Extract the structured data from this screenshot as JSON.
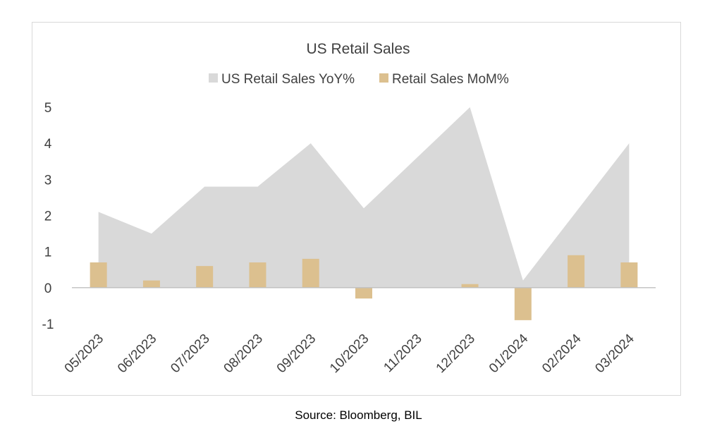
{
  "source_note": "Source: Bloomberg, BIL",
  "colors": {
    "area": "#d9d9d9",
    "bar": "#dcc08f",
    "axis": "#bfbfbf",
    "text": "#404040"
  },
  "chart_data": {
    "type": "bar",
    "title": "US Retail Sales",
    "categories": [
      "05/2023",
      "06/2023",
      "07/2023",
      "08/2023",
      "09/2023",
      "10/2023",
      "11/2023",
      "12/2023",
      "01/2024",
      "02/2024",
      "03/2024"
    ],
    "series": [
      {
        "name": "US Retail Sales YoY%",
        "type": "area",
        "values": [
          2.1,
          1.5,
          2.8,
          2.8,
          4.0,
          2.2,
          3.6,
          5.0,
          0.2,
          2.1,
          4.0
        ]
      },
      {
        "name": "Retail Sales MoM%",
        "type": "bar",
        "values": [
          0.7,
          0.2,
          0.6,
          0.7,
          0.8,
          -0.3,
          0.0,
          0.1,
          -0.9,
          0.9,
          0.7
        ]
      }
    ],
    "ylim": [
      -1,
      5
    ],
    "yticks": [
      5,
      4,
      3,
      2,
      1,
      0,
      -1
    ],
    "legend": "top",
    "grid": false
  }
}
